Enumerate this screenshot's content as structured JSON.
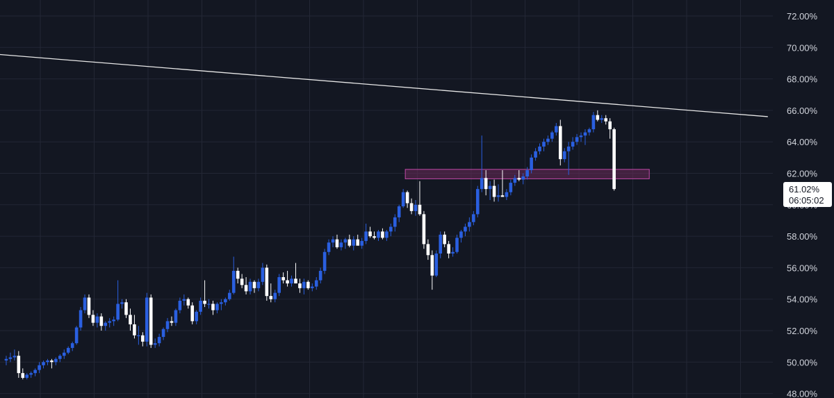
{
  "colors": {
    "background": "#131722",
    "grid": "#232735",
    "up": "#2a5fe0",
    "down": "#ffffff",
    "trendline": "#e8e8e8",
    "zone_fill": "#6b2a5a",
    "zone_stroke": "#c04aa8",
    "axis_text": "#d1d4dc"
  },
  "chart_data": {
    "type": "candlestick",
    "y_unit": "%",
    "ylim": [
      47.5,
      72.8
    ],
    "y_ticks": [
      "72.00%",
      "70.00%",
      "68.00%",
      "66.00%",
      "64.00%",
      "62.00%",
      "60.00%",
      "58.00%",
      "56.00%",
      "54.00%",
      "52.00%",
      "50.00%",
      "48.00%"
    ],
    "last_price": {
      "label": "61.02%",
      "countdown": "06:05:02",
      "value": 61.02
    },
    "resistance_zone": {
      "low": 61.65,
      "high": 62.25,
      "from_index": 97,
      "to_index": 156
    },
    "trendline": {
      "start": {
        "index": 0,
        "value": 69.55
      },
      "end": {
        "index": 184,
        "value": 65.6
      }
    },
    "candles": [
      [
        50.1,
        50.4,
        49.8,
        50.2
      ],
      [
        50.2,
        50.6,
        50.0,
        50.3
      ],
      [
        50.3,
        50.8,
        50.1,
        50.4
      ],
      [
        50.4,
        50.7,
        49.0,
        49.3
      ],
      [
        49.3,
        49.6,
        48.9,
        49.0
      ],
      [
        49.0,
        49.3,
        48.9,
        49.2
      ],
      [
        49.2,
        49.4,
        49.0,
        49.3
      ],
      [
        49.3,
        49.6,
        49.1,
        49.5
      ],
      [
        49.5,
        50.0,
        49.3,
        49.8
      ],
      [
        49.8,
        50.1,
        49.6,
        50.0
      ],
      [
        50.0,
        50.2,
        49.8,
        50.1
      ],
      [
        50.1,
        50.2,
        49.6,
        50.0
      ],
      [
        50.0,
        50.3,
        49.8,
        50.2
      ],
      [
        50.2,
        50.5,
        50.0,
        50.4
      ],
      [
        50.4,
        50.8,
        50.2,
        50.6
      ],
      [
        50.6,
        51.0,
        50.5,
        50.9
      ],
      [
        50.9,
        51.3,
        50.7,
        51.2
      ],
      [
        51.2,
        52.3,
        51.1,
        52.2
      ],
      [
        52.2,
        53.5,
        52.0,
        53.3
      ],
      [
        53.3,
        54.3,
        53.1,
        54.1
      ],
      [
        54.1,
        54.3,
        52.8,
        53.0
      ],
      [
        53.0,
        53.3,
        52.3,
        52.5
      ],
      [
        52.5,
        53.1,
        52.2,
        52.9
      ],
      [
        52.9,
        53.1,
        52.0,
        52.3
      ],
      [
        52.3,
        52.6,
        52.0,
        52.5
      ],
      [
        52.5,
        52.8,
        52.2,
        52.6
      ],
      [
        52.6,
        52.9,
        52.3,
        52.7
      ],
      [
        52.7,
        55.2,
        52.6,
        53.7
      ],
      [
        53.7,
        54.0,
        53.4,
        53.8
      ],
      [
        53.8,
        54.0,
        52.8,
        53.0
      ],
      [
        53.0,
        53.4,
        52.0,
        52.4
      ],
      [
        52.4,
        53.0,
        51.5,
        51.7
      ],
      [
        51.7,
        52.3,
        51.1,
        51.7
      ],
      [
        51.7,
        51.9,
        51.0,
        51.3
      ],
      [
        51.3,
        54.4,
        51.0,
        54.1
      ],
      [
        54.1,
        54.3,
        50.9,
        51.1
      ],
      [
        51.1,
        51.5,
        50.9,
        51.2
      ],
      [
        51.2,
        51.8,
        51.0,
        51.6
      ],
      [
        51.6,
        52.2,
        51.4,
        52.1
      ],
      [
        52.1,
        52.8,
        51.9,
        52.6
      ],
      [
        52.6,
        52.9,
        52.3,
        52.5
      ],
      [
        52.5,
        53.4,
        52.3,
        53.3
      ],
      [
        53.3,
        54.1,
        53.1,
        53.9
      ],
      [
        53.9,
        54.3,
        53.6,
        54.0
      ],
      [
        54.0,
        54.1,
        53.4,
        53.6
      ],
      [
        53.6,
        53.8,
        52.4,
        52.6
      ],
      [
        52.6,
        53.3,
        52.4,
        53.2
      ],
      [
        53.2,
        54.1,
        53.0,
        53.9
      ],
      [
        53.9,
        55.2,
        53.5,
        53.7
      ],
      [
        53.7,
        54.0,
        53.4,
        53.7
      ],
      [
        53.7,
        53.9,
        53.0,
        53.3
      ],
      [
        53.3,
        53.8,
        53.1,
        53.7
      ],
      [
        53.7,
        54.0,
        53.3,
        53.8
      ],
      [
        53.8,
        54.1,
        53.6,
        54.0
      ],
      [
        54.0,
        54.6,
        53.9,
        54.4
      ],
      [
        54.4,
        56.7,
        54.3,
        55.8
      ],
      [
        55.8,
        56.0,
        55.0,
        55.3
      ],
      [
        55.3,
        55.6,
        54.7,
        54.9
      ],
      [
        54.9,
        55.4,
        54.3,
        54.5
      ],
      [
        54.5,
        55.3,
        54.3,
        55.1
      ],
      [
        55.1,
        55.2,
        54.4,
        54.7
      ],
      [
        54.7,
        55.3,
        54.5,
        55.1
      ],
      [
        55.1,
        56.3,
        54.9,
        56.0
      ],
      [
        56.0,
        56.2,
        53.9,
        54.2
      ],
      [
        54.2,
        55.0,
        53.8,
        54.0
      ],
      [
        54.0,
        54.6,
        53.8,
        54.4
      ],
      [
        54.4,
        55.6,
        54.2,
        55.4
      ],
      [
        55.4,
        55.7,
        55.0,
        55.2
      ],
      [
        55.2,
        55.8,
        54.8,
        55.0
      ],
      [
        55.0,
        55.5,
        54.8,
        55.3
      ],
      [
        55.3,
        56.3,
        55.1,
        55.0
      ],
      [
        55.0,
        55.3,
        54.4,
        54.7
      ],
      [
        54.7,
        55.3,
        54.3,
        55.1
      ],
      [
        55.1,
        55.2,
        54.6,
        54.7
      ],
      [
        54.7,
        55.0,
        54.5,
        54.8
      ],
      [
        54.8,
        55.4,
        54.6,
        55.2
      ],
      [
        55.2,
        56.0,
        55.0,
        55.8
      ],
      [
        55.8,
        57.2,
        55.6,
        57.0
      ],
      [
        57.0,
        57.8,
        56.8,
        57.6
      ],
      [
        57.6,
        58.0,
        57.3,
        57.8
      ],
      [
        57.8,
        58.1,
        57.2,
        57.3
      ],
      [
        57.3,
        57.8,
        57.1,
        57.6
      ],
      [
        57.6,
        57.9,
        57.2,
        57.8
      ],
      [
        57.8,
        58.1,
        57.3,
        57.4
      ],
      [
        57.4,
        58.0,
        57.1,
        57.8
      ],
      [
        57.8,
        58.1,
        57.5,
        57.4
      ],
      [
        57.4,
        57.9,
        57.2,
        57.7
      ],
      [
        57.7,
        58.8,
        57.5,
        58.3
      ],
      [
        58.3,
        58.6,
        57.9,
        58.0
      ],
      [
        58.0,
        58.3,
        57.8,
        57.9
      ],
      [
        57.9,
        58.4,
        57.7,
        58.3
      ],
      [
        58.3,
        58.5,
        57.8,
        57.9
      ],
      [
        57.9,
        58.4,
        57.7,
        58.3
      ],
      [
        58.3,
        58.8,
        58.0,
        58.6
      ],
      [
        58.6,
        59.4,
        58.3,
        59.2
      ],
      [
        59.2,
        60.0,
        58.9,
        59.9
      ],
      [
        59.9,
        61.0,
        59.8,
        60.8
      ],
      [
        60.8,
        60.9,
        59.8,
        60.1
      ],
      [
        60.1,
        60.4,
        59.4,
        59.6
      ],
      [
        59.6,
        60.3,
        59.3,
        60.0
      ],
      [
        60.0,
        61.5,
        59.3,
        59.4
      ],
      [
        59.4,
        59.6,
        57.2,
        57.5
      ],
      [
        57.5,
        57.8,
        56.5,
        56.8
      ],
      [
        56.8,
        57.1,
        54.6,
        55.5
      ],
      [
        55.5,
        57.1,
        55.4,
        56.9
      ],
      [
        56.9,
        58.3,
        56.6,
        58.1
      ],
      [
        58.1,
        58.3,
        57.3,
        57.5
      ],
      [
        57.5,
        57.7,
        56.6,
        56.9
      ],
      [
        56.9,
        57.3,
        56.7,
        57.0
      ],
      [
        57.0,
        58.1,
        56.9,
        57.9
      ],
      [
        57.9,
        58.4,
        57.6,
        58.3
      ],
      [
        58.3,
        58.8,
        58.0,
        58.6
      ],
      [
        58.6,
        59.2,
        58.3,
        58.9
      ],
      [
        58.9,
        59.6,
        58.7,
        59.4
      ],
      [
        59.4,
        61.2,
        59.2,
        61.0
      ],
      [
        61.0,
        64.4,
        60.8,
        61.7
      ],
      [
        61.7,
        62.2,
        60.6,
        61.0
      ],
      [
        61.0,
        61.5,
        60.3,
        61.2
      ],
      [
        61.2,
        61.6,
        60.2,
        60.5
      ],
      [
        60.5,
        61.3,
        60.2,
        60.6
      ],
      [
        60.6,
        62.2,
        60.5,
        60.5
      ],
      [
        60.5,
        61.0,
        60.3,
        60.8
      ],
      [
        60.8,
        61.6,
        60.6,
        61.4
      ],
      [
        61.4,
        61.9,
        61.2,
        61.7
      ],
      [
        61.7,
        62.2,
        61.5,
        61.6
      ],
      [
        61.6,
        62.0,
        61.3,
        61.8
      ],
      [
        61.8,
        62.4,
        61.6,
        62.2
      ],
      [
        62.2,
        63.2,
        62.0,
        63.0
      ],
      [
        63.0,
        63.6,
        62.8,
        63.4
      ],
      [
        63.4,
        63.9,
        63.2,
        63.7
      ],
      [
        63.7,
        64.2,
        63.4,
        64.0
      ],
      [
        64.0,
        64.4,
        63.8,
        64.2
      ],
      [
        64.2,
        64.7,
        64.0,
        64.6
      ],
      [
        64.6,
        65.2,
        64.4,
        65.0
      ],
      [
        65.0,
        65.4,
        62.5,
        62.9
      ],
      [
        62.9,
        63.6,
        62.7,
        63.4
      ],
      [
        63.4,
        64.0,
        61.9,
        63.7
      ],
      [
        63.7,
        64.3,
        63.5,
        64.0
      ],
      [
        64.0,
        64.5,
        63.8,
        64.3
      ],
      [
        64.3,
        64.6,
        64.0,
        64.4
      ],
      [
        64.4,
        64.8,
        63.8,
        64.6
      ],
      [
        64.6,
        64.9,
        64.4,
        64.8
      ],
      [
        64.8,
        65.9,
        64.6,
        65.7
      ],
      [
        65.7,
        66.0,
        65.3,
        65.4
      ],
      [
        65.4,
        65.7,
        65.2,
        65.5
      ],
      [
        65.5,
        65.7,
        65.1,
        65.3
      ],
      [
        65.3,
        65.5,
        64.2,
        64.8
      ],
      [
        64.8,
        64.9,
        60.9,
        61.0
      ]
    ]
  }
}
